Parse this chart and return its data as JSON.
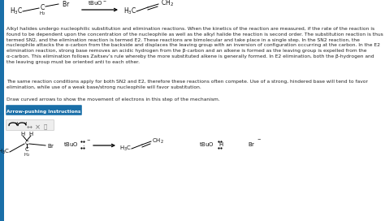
{
  "bg_color": "#ffffff",
  "text_color": "#222222",
  "left_bar_color": "#1a6fa8",
  "arrow_btn_color": "#1a6fa8",
  "arrow_btn_text_color": "#ffffff",
  "body1": "Alkyl halides undergo nucleophilic substitution and elimination reactions. When the kinetics of the reaction are measured, if the rate of the reaction is\nfound to be dependent upon the concentration of the nucleophile as well as the alkyl halide the reaction is second order. The substitution reaction is thus\ntermed SN2, and the elimination reaction is termed E2. These reactions are bimolecular and take place in a single step. In the SN2 reaction, the\nnucleophile attacks the α-carbon from the backside and displaces the leaving group with an inversion of configuration occurring at the carbon. In the E2\nelimination reaction, strong base removes an acidic hydrogen from the β-carbon and an alkene is formed as the leaving group is expelled from the\nα-carbon. This elimination follows Zaitsev’s rule whereby the more substituted alkene is generally formed. In E2 elimination, both the β-hydrogen and\nthe leaving group must be oriented anti to each other.",
  "body2": "The same reaction conditions apply for both SN2 and E2, therefore these reactions often compete. Use of a strong, hindered base will tend to favor\nelimination, while use of a weak base/strong nucleophile will favor substitution.",
  "body3": "Draw curved arrows to show the movement of electrons in this step of the mechanism.",
  "btn_label": "Arrow-pushing Instructions"
}
